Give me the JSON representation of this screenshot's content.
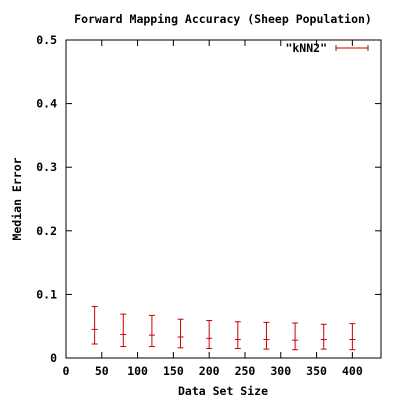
{
  "chart_data": {
    "type": "scatter",
    "title": "Forward Mapping Accuracy (Sheep Population)",
    "xlabel": "Data Set Size",
    "ylabel": "Median Error",
    "xlim": [
      0,
      440
    ],
    "ylim": [
      0,
      0.5
    ],
    "x_ticks": [
      "0",
      "50",
      "100",
      "150",
      "200",
      "250",
      "300",
      "350",
      "400"
    ],
    "x_tick_values": [
      0,
      50,
      100,
      150,
      200,
      250,
      300,
      350,
      400
    ],
    "y_ticks": [
      "0",
      "0.1",
      "0.2",
      "0.3",
      "0.4",
      "0.5"
    ],
    "y_tick_values": [
      0,
      0.1,
      0.2,
      0.3,
      0.4,
      0.5
    ],
    "grid": false,
    "legend_position": "top-right",
    "series": [
      {
        "name": "\"kNN2\"",
        "color": "#cc0000",
        "style": "errorbars",
        "points": [
          {
            "x": 40,
            "y": 0.045,
            "low": 0.022,
            "high": 0.081
          },
          {
            "x": 80,
            "y": 0.037,
            "low": 0.018,
            "high": 0.069
          },
          {
            "x": 120,
            "y": 0.036,
            "low": 0.018,
            "high": 0.067
          },
          {
            "x": 160,
            "y": 0.033,
            "low": 0.016,
            "high": 0.061
          },
          {
            "x": 200,
            "y": 0.031,
            "low": 0.015,
            "high": 0.059
          },
          {
            "x": 240,
            "y": 0.029,
            "low": 0.015,
            "high": 0.057
          },
          {
            "x": 280,
            "y": 0.029,
            "low": 0.014,
            "high": 0.056
          },
          {
            "x": 320,
            "y": 0.028,
            "low": 0.013,
            "high": 0.055
          },
          {
            "x": 360,
            "y": 0.029,
            "low": 0.014,
            "high": 0.053
          },
          {
            "x": 400,
            "y": 0.029,
            "low": 0.013,
            "high": 0.054
          }
        ]
      }
    ]
  }
}
